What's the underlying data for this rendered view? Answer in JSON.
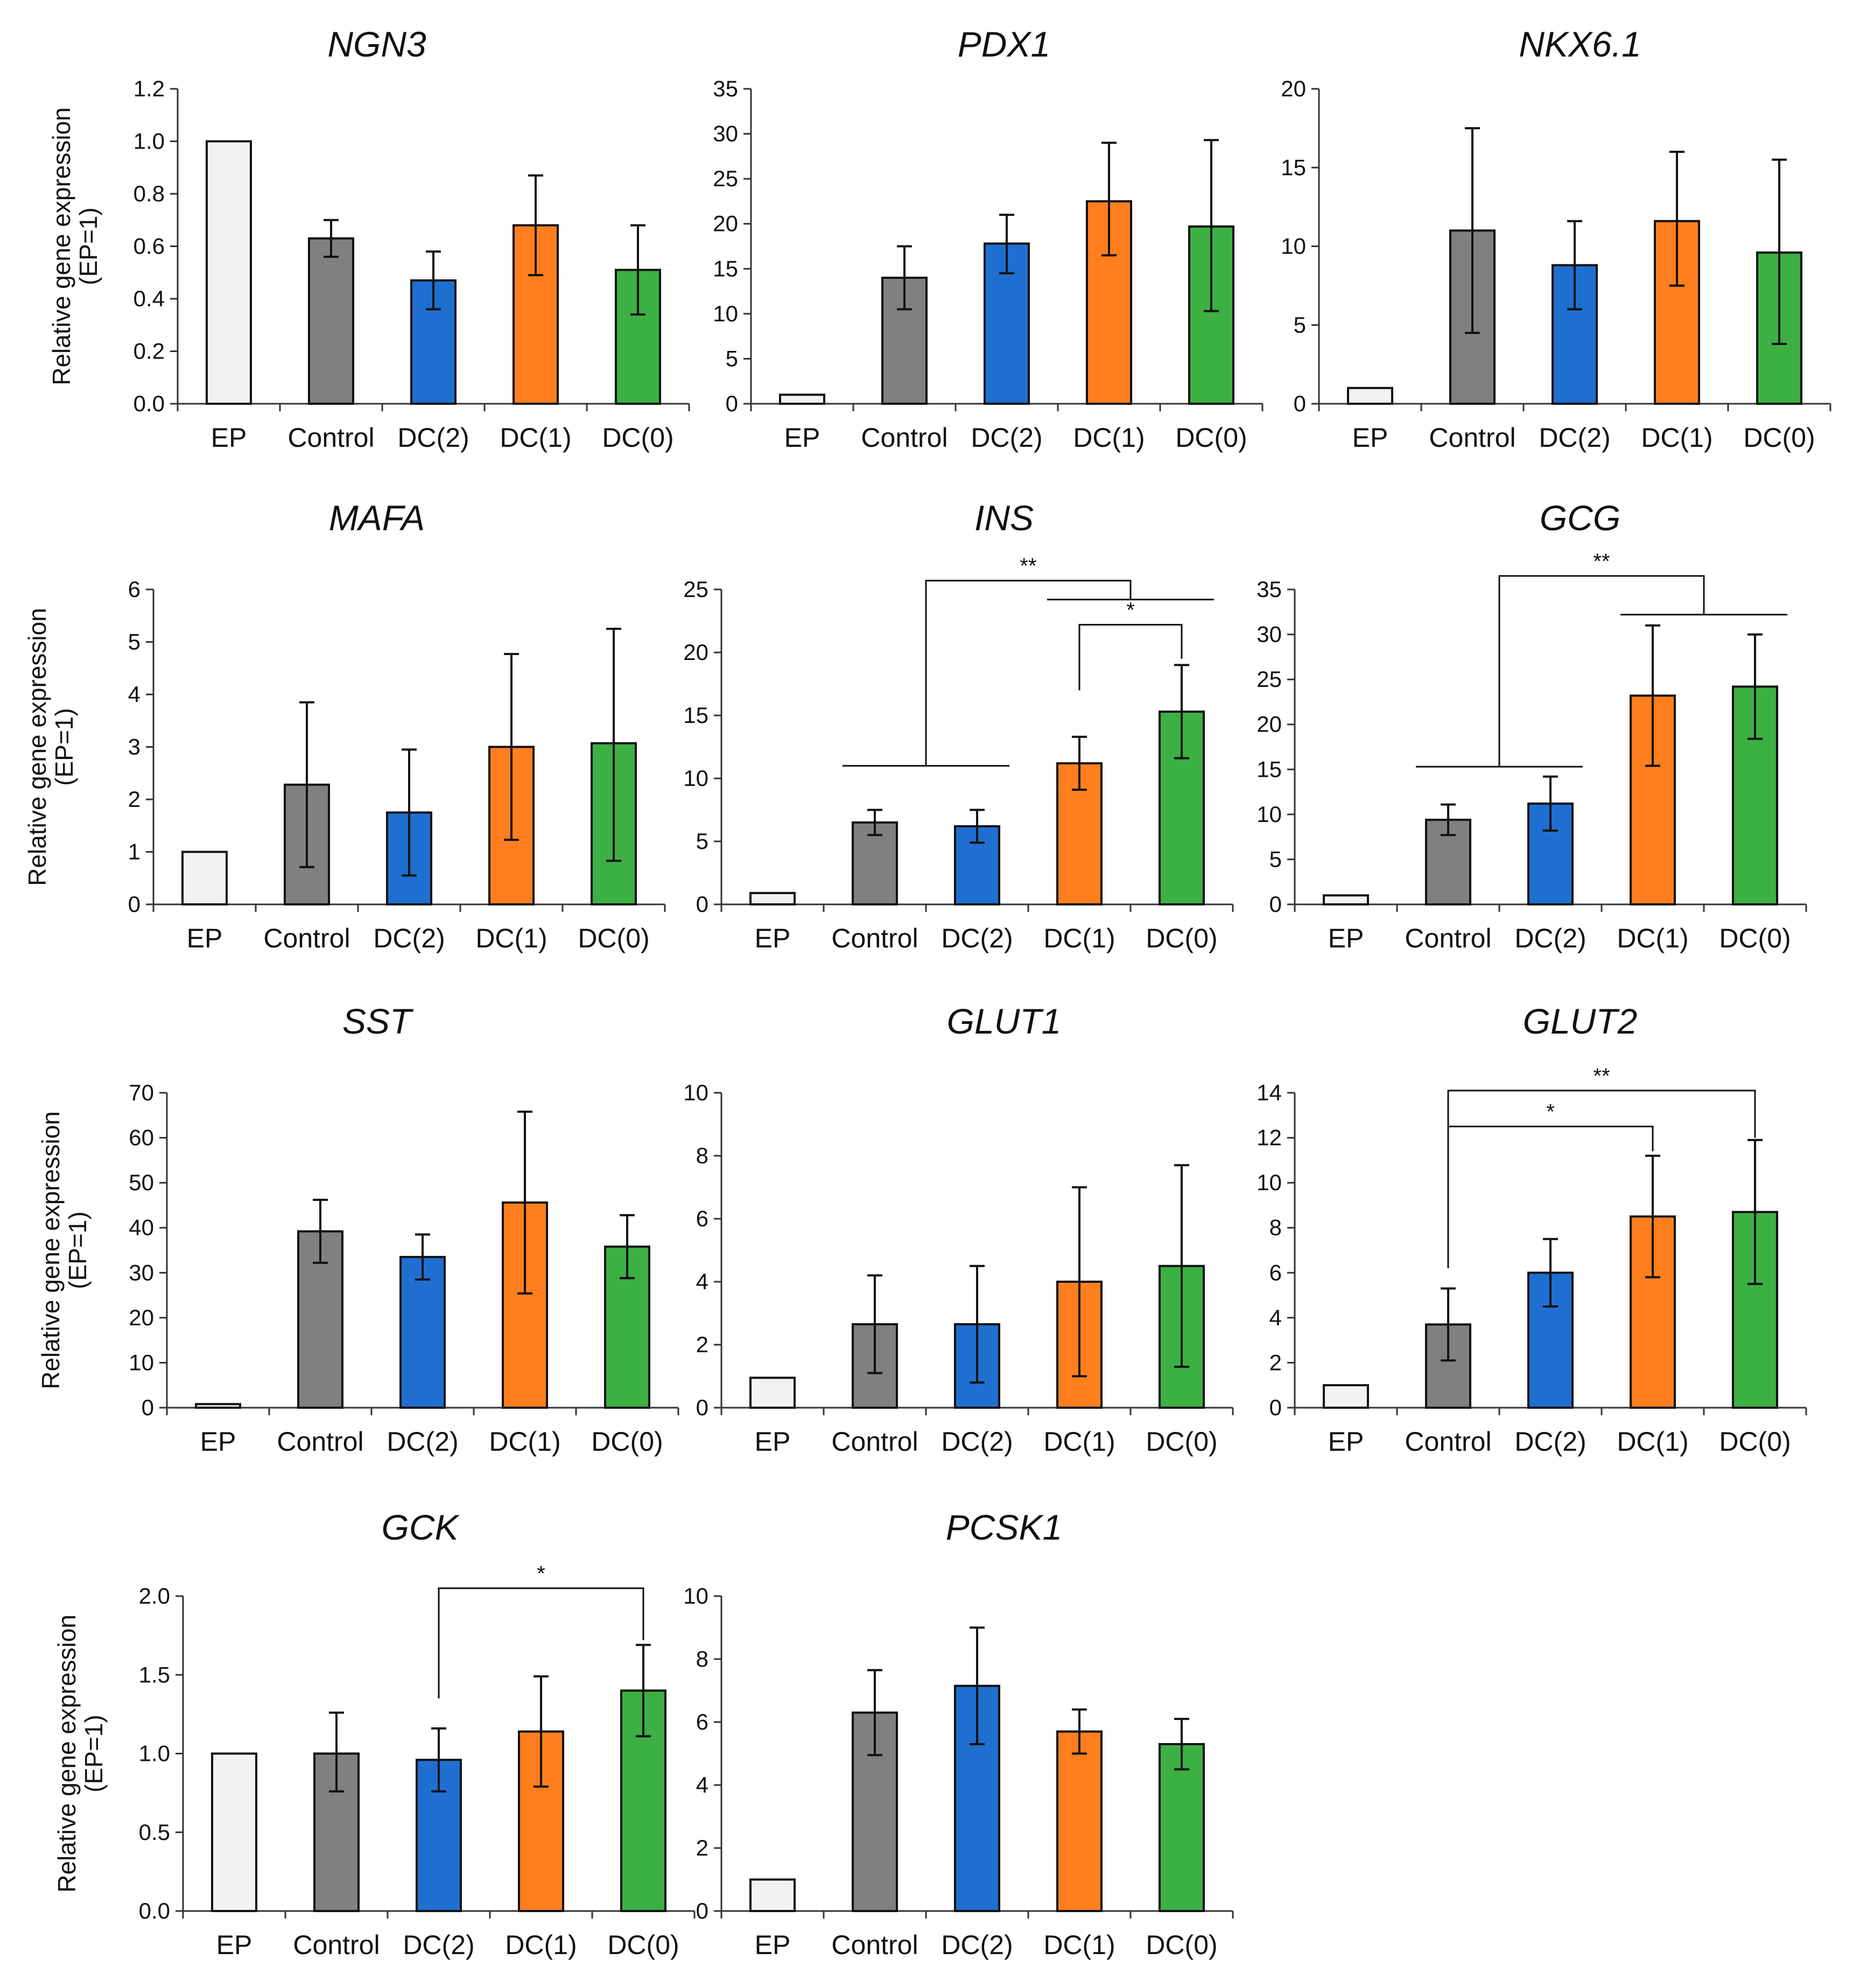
{
  "chart_data": [
    {
      "type": "bar",
      "title": "NGN3",
      "ylabel": "Relative gene expression",
      "ylabel2": "(EP=1)",
      "categories": [
        "EP",
        "Control",
        "DC(2)",
        "DC(1)",
        "DC(0)"
      ],
      "ylim": [
        0,
        1.2
      ],
      "ticks": [
        "0.0",
        "0.2",
        "0.4",
        "0.6",
        "0.8",
        "1.0",
        "1.2"
      ],
      "values": [
        1.0,
        0.63,
        0.47,
        0.68,
        0.51
      ],
      "err_upper": [
        1.0,
        0.7,
        0.58,
        0.87,
        0.68
      ],
      "err_lower": [
        1.0,
        0.56,
        0.36,
        0.49,
        0.34
      ],
      "colors": [
        "#f2f2f2",
        "#808080",
        "#1f6fd0",
        "#ff7f1f",
        "#3cb043"
      ],
      "significance": []
    },
    {
      "type": "bar",
      "title": "PDX1",
      "ylabel": "",
      "ylabel2": "",
      "categories": [
        "EP",
        "Control",
        "DC(2)",
        "DC(1)",
        "DC(0)"
      ],
      "ylim": [
        0,
        35
      ],
      "ticks": [
        "0",
        "5",
        "10",
        "15",
        "20",
        "25",
        "30",
        "35"
      ],
      "values": [
        1.0,
        14.0,
        17.8,
        22.5,
        19.7
      ],
      "err_upper": [
        1.0,
        17.5,
        21.0,
        29.0,
        29.3
      ],
      "err_lower": [
        1.0,
        10.5,
        14.5,
        16.5,
        10.3
      ],
      "colors": [
        "#f2f2f2",
        "#808080",
        "#1f6fd0",
        "#ff7f1f",
        "#3cb043"
      ],
      "significance": []
    },
    {
      "type": "bar",
      "title": "NKX6.1",
      "ylabel": "",
      "ylabel2": "",
      "categories": [
        "EP",
        "Control",
        "DC(2)",
        "DC(1)",
        "DC(0)"
      ],
      "ylim": [
        0,
        20
      ],
      "ticks": [
        "0",
        "5",
        "10",
        "15",
        "20"
      ],
      "values": [
        1.0,
        11.0,
        8.8,
        11.6,
        9.6
      ],
      "err_upper": [
        1.0,
        17.5,
        11.6,
        16.0,
        15.5
      ],
      "err_lower": [
        1.0,
        4.5,
        6.0,
        7.5,
        3.8
      ],
      "colors": [
        "#f2f2f2",
        "#808080",
        "#1f6fd0",
        "#ff7f1f",
        "#3cb043"
      ],
      "significance": []
    },
    {
      "type": "bar",
      "title": "MAFA",
      "ylabel": "Relative gene expression",
      "ylabel2": "(EP=1)",
      "categories": [
        "EP",
        "Control",
        "DC(2)",
        "DC(1)",
        "DC(0)"
      ],
      "ylim": [
        0,
        6
      ],
      "ticks": [
        "0",
        "1",
        "2",
        "3",
        "4",
        "5",
        "6"
      ],
      "values": [
        1.0,
        2.28,
        1.75,
        3.0,
        3.07
      ],
      "err_upper": [
        1.0,
        3.85,
        2.95,
        4.77,
        5.25
      ],
      "err_lower": [
        1.0,
        0.71,
        0.55,
        1.23,
        0.83
      ],
      "colors": [
        "#f2f2f2",
        "#808080",
        "#1f6fd0",
        "#ff7f1f",
        "#3cb043"
      ],
      "significance": []
    },
    {
      "type": "bar",
      "title": "INS",
      "ylabel": "",
      "ylabel2": "",
      "categories": [
        "EP",
        "Control",
        "DC(2)",
        "DC(1)",
        "DC(0)"
      ],
      "ylim": [
        0,
        25
      ],
      "ticks": [
        "0",
        "5",
        "10",
        "15",
        "20",
        "25"
      ],
      "values": [
        0.9,
        6.5,
        6.2,
        11.2,
        15.3
      ],
      "err_upper": [
        0.9,
        7.5,
        7.5,
        13.3,
        19.0
      ],
      "err_lower": [
        0.9,
        5.5,
        4.9,
        9.1,
        11.6
      ],
      "colors": [
        "#f2f2f2",
        "#808080",
        "#1f6fd0",
        "#ff7f1f",
        "#3cb043"
      ],
      "significance": [
        {
          "type": "group",
          "label": "**",
          "left": [
            1,
            2
          ],
          "right": [
            3,
            4
          ],
          "left_y": 11.0,
          "right_y": 24.2,
          "top": 25.7
        },
        {
          "type": "pair",
          "label": "*",
          "from": 3,
          "to": 4,
          "from_y": 17.0,
          "to_y": 19.5,
          "top": 22.2
        }
      ]
    },
    {
      "type": "bar",
      "title": "GCG",
      "ylabel": "",
      "ylabel2": "",
      "categories": [
        "EP",
        "Control",
        "DC(2)",
        "DC(1)",
        "DC(0)"
      ],
      "ylim": [
        0,
        35
      ],
      "ticks": [
        "0",
        "5",
        "10",
        "15",
        "20",
        "25",
        "30",
        "35"
      ],
      "values": [
        1.0,
        9.4,
        11.2,
        23.2,
        24.2
      ],
      "err_upper": [
        1.0,
        11.1,
        14.2,
        31.0,
        30.0
      ],
      "err_lower": [
        1.0,
        7.7,
        8.2,
        15.4,
        18.4
      ],
      "colors": [
        "#f2f2f2",
        "#808080",
        "#1f6fd0",
        "#ff7f1f",
        "#3cb043"
      ],
      "significance": [
        {
          "type": "group",
          "label": "**",
          "left": [
            1,
            2
          ],
          "right": [
            3,
            4
          ],
          "left_y": 15.3,
          "right_y": 32.2,
          "top": 36.5
        }
      ]
    },
    {
      "type": "bar",
      "title": "SST",
      "ylabel": "Relative gene expression",
      "ylabel2": "(EP=1)",
      "categories": [
        "EP",
        "Control",
        "DC(2)",
        "DC(1)",
        "DC(0)"
      ],
      "ylim": [
        0,
        70
      ],
      "ticks": [
        "0",
        "10",
        "20",
        "30",
        "40",
        "50",
        "60",
        "70"
      ],
      "values": [
        0.8,
        39.2,
        33.5,
        45.6,
        35.8
      ],
      "err_upper": [
        0.8,
        46.2,
        38.5,
        65.8,
        42.8
      ],
      "err_lower": [
        0.8,
        32.2,
        28.5,
        25.4,
        28.8
      ],
      "colors": [
        "#f2f2f2",
        "#808080",
        "#1f6fd0",
        "#ff7f1f",
        "#3cb043"
      ],
      "significance": []
    },
    {
      "type": "bar",
      "title": "GLUT1",
      "ylabel": "",
      "ylabel2": "",
      "categories": [
        "EP",
        "Control",
        "DC(2)",
        "DC(1)",
        "DC(0)"
      ],
      "ylim": [
        0,
        10
      ],
      "ticks": [
        "0",
        "2",
        "4",
        "6",
        "8",
        "10"
      ],
      "values": [
        0.95,
        2.65,
        2.65,
        4.0,
        4.5
      ],
      "err_upper": [
        0.95,
        4.2,
        4.5,
        7.0,
        7.7
      ],
      "err_lower": [
        0.95,
        1.1,
        0.8,
        1.0,
        1.3
      ],
      "colors": [
        "#f2f2f2",
        "#808080",
        "#1f6fd0",
        "#ff7f1f",
        "#3cb043"
      ],
      "significance": []
    },
    {
      "type": "bar",
      "title": "GLUT2",
      "ylabel": "",
      "ylabel2": "",
      "categories": [
        "EP",
        "Control",
        "DC(2)",
        "DC(1)",
        "DC(0)"
      ],
      "ylim": [
        0,
        14
      ],
      "ticks": [
        "0",
        "2",
        "4",
        "6",
        "8",
        "10",
        "12",
        "14"
      ],
      "values": [
        1.0,
        3.7,
        6.0,
        8.5,
        8.7
      ],
      "err_upper": [
        1.0,
        5.3,
        7.5,
        11.2,
        11.9
      ],
      "err_lower": [
        1.0,
        2.1,
        4.5,
        5.8,
        5.5
      ],
      "colors": [
        "#f2f2f2",
        "#808080",
        "#1f6fd0",
        "#ff7f1f",
        "#3cb043"
      ],
      "significance": [
        {
          "type": "pair",
          "label": "*",
          "from": 1,
          "to": 3,
          "from_y": 6.2,
          "to_y": 11.4,
          "top": 12.5
        },
        {
          "type": "pair",
          "label": "**",
          "from": 1,
          "to": 4,
          "from_y": 7.8,
          "to_y": 12.0,
          "top": 14.1
        }
      ]
    },
    {
      "type": "bar",
      "title": "GCK",
      "ylabel": "Relative gene expression",
      "ylabel2": "(EP=1)",
      "categories": [
        "EP",
        "Control",
        "DC(2)",
        "DC(1)",
        "DC(0)"
      ],
      "ylim": [
        0,
        2.0
      ],
      "ticks": [
        "0.0",
        "0.5",
        "1.0",
        "1.5",
        "2.0"
      ],
      "values": [
        1.0,
        1.0,
        0.96,
        1.14,
        1.4
      ],
      "err_upper": [
        1.0,
        1.26,
        1.16,
        1.49,
        1.69
      ],
      "err_lower": [
        1.0,
        0.76,
        0.76,
        0.79,
        1.11
      ],
      "colors": [
        "#f2f2f2",
        "#808080",
        "#1f6fd0",
        "#ff7f1f",
        "#3cb043"
      ],
      "significance": [
        {
          "type": "pair",
          "label": "*",
          "from": 2,
          "to": 4,
          "from_y": 1.35,
          "to_y": 1.72,
          "top": 2.05
        }
      ]
    },
    {
      "type": "bar",
      "title": "PCSK1",
      "ylabel": "",
      "ylabel2": "",
      "categories": [
        "EP",
        "Control",
        "DC(2)",
        "DC(1)",
        "DC(0)"
      ],
      "ylim": [
        0,
        10
      ],
      "ticks": [
        "0",
        "2",
        "4",
        "6",
        "8",
        "10"
      ],
      "values": [
        1.0,
        6.3,
        7.15,
        5.7,
        5.3
      ],
      "err_upper": [
        1.0,
        7.65,
        9.0,
        6.4,
        6.1
      ],
      "err_lower": [
        1.0,
        4.95,
        5.3,
        5.0,
        4.5
      ],
      "colors": [
        "#f2f2f2",
        "#808080",
        "#1f6fd0",
        "#ff7f1f",
        "#3cb043"
      ],
      "significance": []
    }
  ]
}
